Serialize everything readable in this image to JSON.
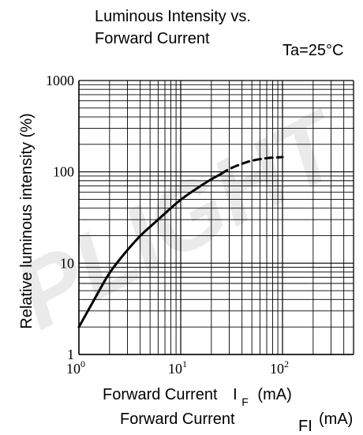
{
  "chart_data": {
    "type": "line",
    "title_line1": "Luminous Intensity vs.",
    "title_line2": "Forward Current",
    "condition": "Ta=25°C",
    "ylabel": "Relative luminous intensity  (%)",
    "xlabel_main": "Forward Current",
    "xlabel_symbol": "I",
    "xlabel_sub": "F",
    "xlabel_unit": "(mA)",
    "xlabel2_main": "Forward Current",
    "xlabel2_symbol": "FI",
    "xlabel2_unit": "(mA)",
    "watermark": "PLIGHT",
    "x_scale": "log",
    "y_scale": "log",
    "xlim": [
      1,
      100
    ],
    "ylim": [
      1,
      1000
    ],
    "x_ticks": [
      {
        "base": "10",
        "exp": "0"
      },
      {
        "base": "10",
        "exp": "1"
      },
      {
        "base": "10",
        "exp": "2"
      }
    ],
    "y_ticks": [
      "1",
      "10",
      "100",
      "1000"
    ],
    "grid": true,
    "series": [
      {
        "style": "solid",
        "x": [
          1,
          1.5,
          2,
          3,
          4,
          5,
          7,
          10,
          15,
          20,
          25
        ],
        "y": [
          2,
          4.5,
          8,
          14,
          20,
          25,
          35,
          50,
          68,
          83,
          95
        ]
      },
      {
        "style": "dashed",
        "x": [
          25,
          30,
          40,
          50,
          70,
          100
        ],
        "y": [
          95,
          108,
          123,
          133,
          142,
          145
        ]
      }
    ]
  }
}
